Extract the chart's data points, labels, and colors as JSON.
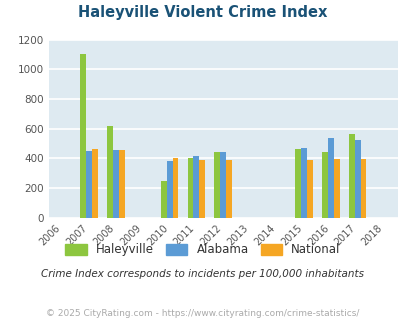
{
  "title": "Haleyville Violent Crime Index",
  "years": [
    2006,
    2007,
    2008,
    2009,
    2010,
    2011,
    2012,
    2013,
    2014,
    2015,
    2016,
    2017,
    2018
  ],
  "haleyville": {
    "2007": 1100,
    "2008": 620,
    "2010": 250,
    "2011": 405,
    "2012": 440,
    "2015": 465,
    "2016": 440,
    "2017": 565
  },
  "alabama": {
    "2007": 450,
    "2008": 455,
    "2010": 380,
    "2011": 415,
    "2012": 445,
    "2015": 470,
    "2016": 535,
    "2017": 525
  },
  "national": {
    "2007": 465,
    "2008": 455,
    "2010": 405,
    "2011": 390,
    "2012": 390,
    "2015": 390,
    "2016": 395,
    "2017": 395
  },
  "color_haleyville": "#8dc63f",
  "color_alabama": "#5b9bd5",
  "color_national": "#f5a623",
  "plot_bg": "#deeaf1",
  "ylim": [
    0,
    1200
  ],
  "yticks": [
    0,
    200,
    400,
    600,
    800,
    1000,
    1200
  ],
  "subtitle": "Crime Index corresponds to incidents per 100,000 inhabitants",
  "footer": "© 2025 CityRating.com - https://www.cityrating.com/crime-statistics/",
  "legend_labels": [
    "Haleyville",
    "Alabama",
    "National"
  ],
  "bar_width": 0.22
}
